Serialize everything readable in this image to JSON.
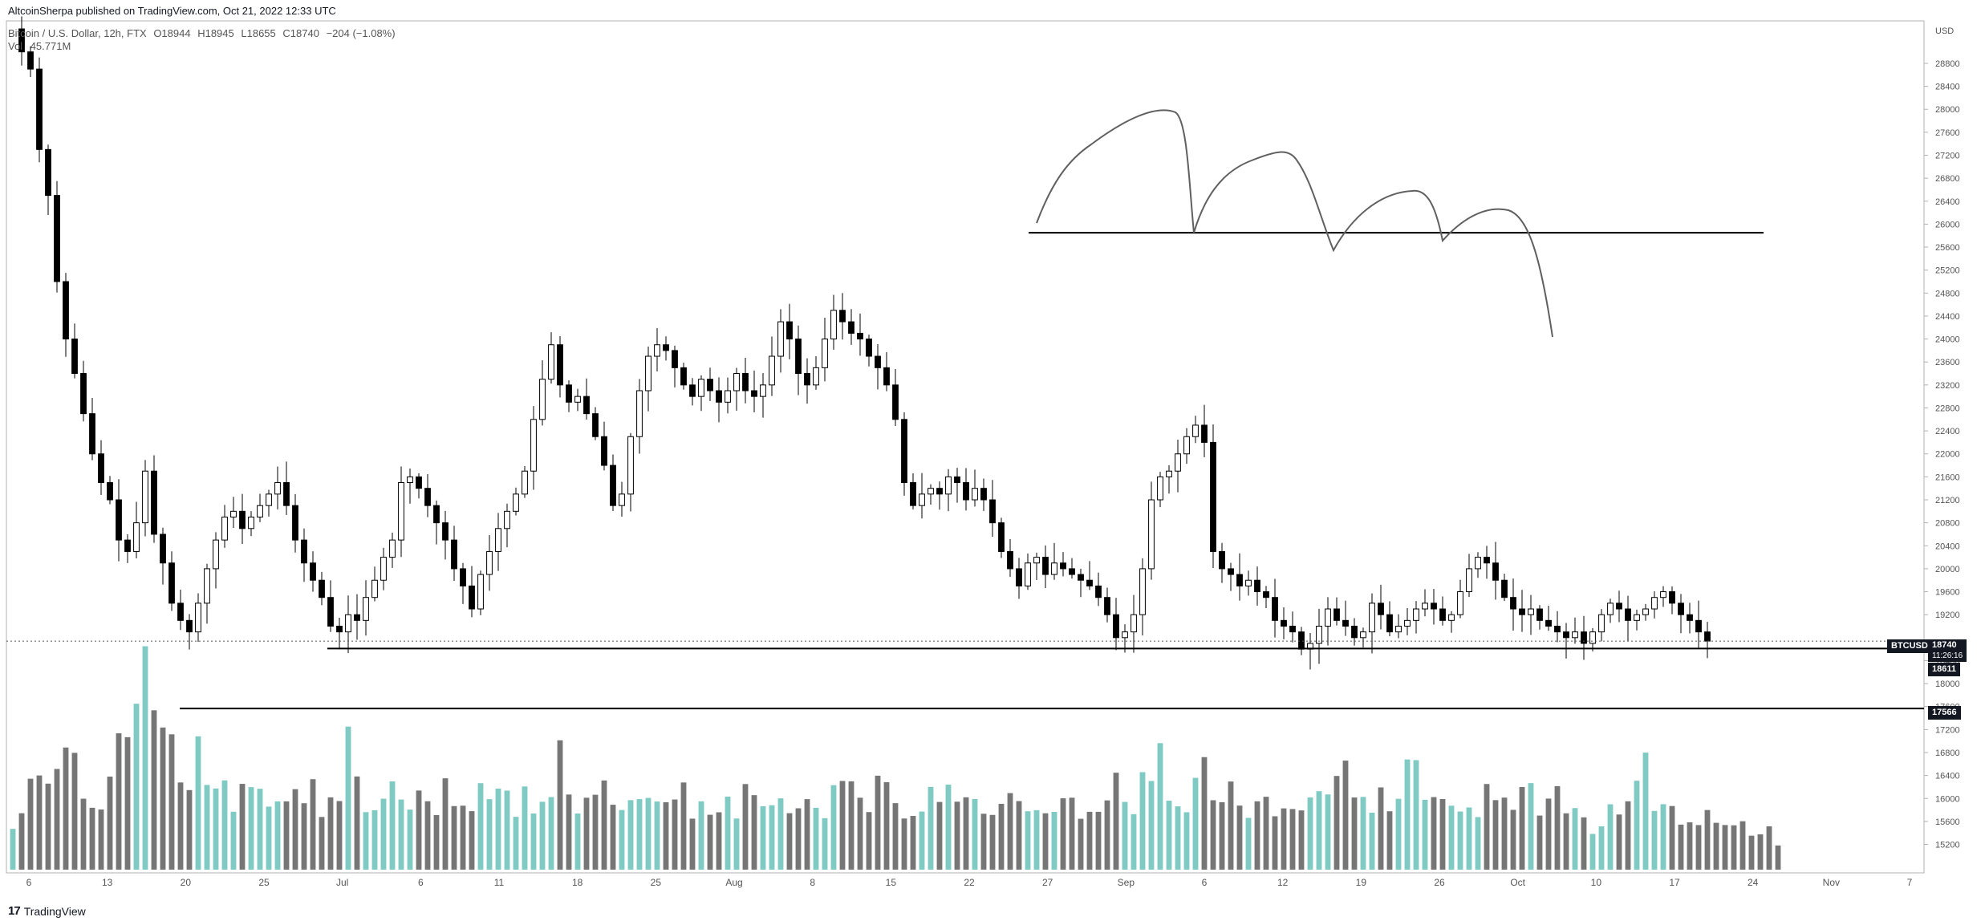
{
  "header": {
    "publisher": "AltcoinSherpa published on TradingView.com, Oct 21, 2022 12:33 UTC",
    "symbol": "Bitcoin / U.S. Dollar, 12h, FTX",
    "open_label": "O18944",
    "high_label": "H18945",
    "low_label": "L18655",
    "close_label": "C18740",
    "change_label": "−204 (−1.08%)",
    "vol_label": "Vol",
    "vol_value": "45.771M"
  },
  "footer": {
    "brand": "TradingView",
    "brand_mark": "17"
  },
  "axis": {
    "currency": "USD"
  },
  "price_tags": {
    "symbol_tag": "BTCUSD",
    "last_price": "18740",
    "countdown": "11:26:16",
    "level_1": "18611",
    "level_2": "17566"
  },
  "colors": {
    "up_body": "#ffffff",
    "down_body": "#000000",
    "candle_outline": "#000000",
    "vol_up": "#7fcac2",
    "vol_down": "#767676",
    "lines": "#000000",
    "drawing": "#606060"
  },
  "chart_data": {
    "type": "candlestick",
    "symbol": "BTCUSD",
    "timeframe": "12h",
    "exchange": "FTX",
    "x_ticks": [
      "6",
      "13",
      "20",
      "25",
      "Jul",
      "6",
      "11",
      "18",
      "25",
      "Aug",
      "8",
      "15",
      "22",
      "27",
      "Sep",
      "6",
      "12",
      "19",
      "26",
      "Oct",
      "10",
      "17",
      "24",
      "Nov",
      "7"
    ],
    "y_ticks": [
      15200,
      15600,
      16000,
      16400,
      16800,
      17200,
      17600,
      18000,
      18400,
      19200,
      19600,
      20000,
      20400,
      20800,
      21200,
      21600,
      22000,
      22400,
      22800,
      23200,
      23600,
      24000,
      24400,
      24800,
      25200,
      25600,
      26000,
      26400,
      26800,
      27200,
      27600,
      28000,
      28400,
      28800
    ],
    "ylim": [
      14900,
      29400
    ],
    "close_path": [
      29400,
      29000,
      28700,
      27300,
      26500,
      25000,
      24000,
      23400,
      22700,
      22000,
      21500,
      21200,
      20500,
      20300,
      20800,
      21700,
      20600,
      20100,
      19400,
      19100,
      18900,
      19400,
      20000,
      20500,
      20900,
      21000,
      20700,
      20900,
      21100,
      21300,
      21500,
      21100,
      20500,
      20100,
      19800,
      19500,
      19000,
      18900,
      19200,
      19100,
      19500,
      19800,
      20200,
      20500,
      21500,
      21600,
      21400,
      21100,
      20800,
      20500,
      20000,
      19700,
      19300,
      19900,
      20300,
      20700,
      21000,
      21300,
      21700,
      22600,
      23300,
      23900,
      23200,
      22900,
      23000,
      22700,
      22300,
      21800,
      21100,
      21300,
      22300,
      23100,
      23700,
      23900,
      23800,
      23500,
      23200,
      23000,
      23300,
      23100,
      22900,
      23100,
      23400,
      23100,
      23000,
      23200,
      23700,
      24300,
      24000,
      23400,
      23200,
      23500,
      24000,
      24500,
      24300,
      24100,
      24000,
      23700,
      23500,
      23200,
      22600,
      21500,
      21100,
      21300,
      21400,
      21300,
      21600,
      21500,
      21200,
      21400,
      21200,
      20800,
      20300,
      20000,
      19700,
      20100,
      20200,
      19900,
      20100,
      20000,
      19900,
      19800,
      19700,
      19500,
      19200,
      18800,
      18900,
      19200,
      20000,
      21200,
      21600,
      21700,
      22000,
      22300,
      22500,
      22200,
      20300,
      20000,
      19900,
      19700,
      19800,
      19600,
      19500,
      19100,
      19000,
      18900,
      18600,
      18700,
      19000,
      19300,
      19100,
      19000,
      18800,
      18900,
      19400,
      19200,
      18900,
      19000,
      19100,
      19300,
      19400,
      19300,
      19100,
      19200,
      19600,
      20000,
      20200,
      20100,
      19800,
      19500,
      19300,
      19200,
      19300,
      19100,
      19000,
      18900,
      18800,
      18900,
      18700,
      18900,
      19200,
      19400,
      19300,
      19100,
      19200,
      19300,
      19500,
      19600,
      19400,
      19200,
      19100,
      18900,
      18740
    ],
    "volume_scale": [
      0,
      10
    ],
    "volume_path": [
      2,
      3,
      4,
      5,
      4,
      5,
      6,
      5,
      4,
      3,
      3,
      5,
      6,
      6,
      9,
      10,
      9,
      7,
      6,
      5,
      4,
      7,
      5,
      4,
      4,
      3,
      5,
      4,
      4,
      3,
      4,
      3,
      4,
      3,
      4,
      3,
      3,
      3,
      6,
      5,
      3,
      3,
      3,
      4,
      3,
      3,
      4,
      3,
      3,
      4,
      3,
      3,
      3,
      4,
      4,
      4,
      4,
      3,
      4,
      3,
      4,
      3,
      6,
      4,
      3,
      3,
      4,
      4,
      3,
      3,
      3,
      4,
      4,
      4,
      3,
      3,
      4,
      3,
      4,
      3,
      3,
      3,
      3,
      5,
      4,
      3,
      3,
      4,
      3,
      3,
      4,
      3,
      3,
      4,
      4,
      4,
      3,
      3,
      4,
      4,
      3,
      3,
      3,
      3,
      4,
      3,
      4,
      3,
      3,
      3,
      3,
      3,
      3,
      4,
      3,
      3,
      3,
      3,
      3,
      3,
      3,
      3,
      3,
      3,
      3,
      4,
      3,
      3,
      5,
      4,
      6,
      3,
      3,
      3,
      4,
      5,
      3,
      3,
      4,
      3,
      3,
      3,
      3,
      3,
      3,
      3,
      3,
      4,
      4,
      4,
      5,
      6,
      4,
      4,
      3,
      4,
      3,
      4,
      5,
      6,
      4,
      4,
      4,
      3,
      3,
      3,
      3,
      4,
      3,
      3,
      3,
      4,
      4,
      3,
      3,
      4,
      3,
      3,
      3,
      2,
      2,
      3,
      3,
      3,
      4,
      5,
      3,
      3,
      3,
      2,
      2,
      2,
      3,
      2,
      2,
      2,
      2,
      2,
      2,
      2,
      1
    ],
    "horizontal_levels": [
      {
        "price": 25850,
        "from_date": "Aug 27",
        "label": ""
      },
      {
        "price": 18611,
        "from_date": "Jul",
        "label": "18611"
      },
      {
        "price": 17566,
        "from_date": "Jun 18",
        "label": "17566"
      }
    ],
    "last_price": 18740,
    "drawing": "hand-drawn descending arc projection above 25850 level"
  }
}
